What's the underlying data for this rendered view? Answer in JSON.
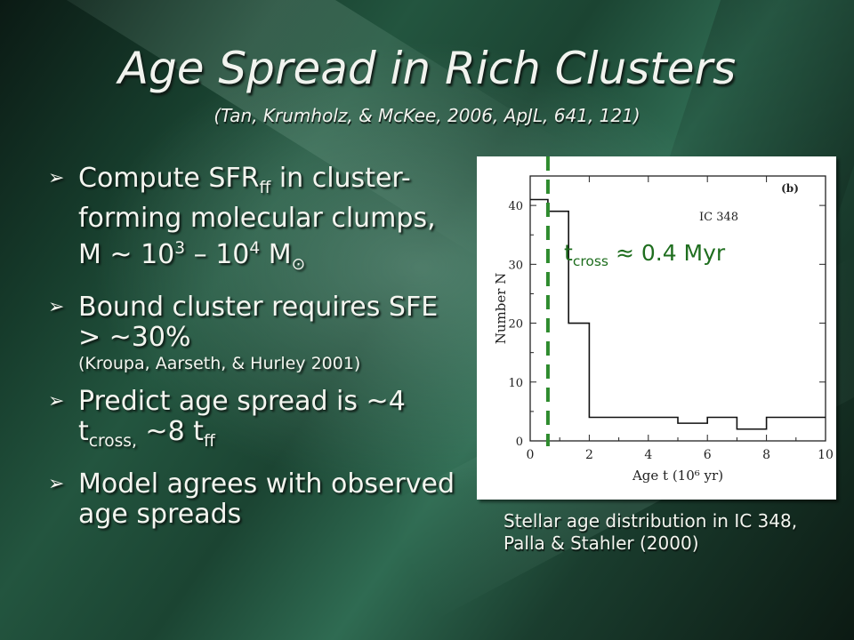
{
  "slide": {
    "title": "Age Spread in Rich Clusters",
    "subtitle": "(Tan, Krumholz, & McKee, 2006, ApJL, 641, 121)",
    "arrow_icon": "arrow-bullet-icon",
    "bullets": [
      {
        "parts": [
          "Compute SFR",
          "ff",
          " in cluster-forming molecular clumps, M ~ 10",
          "3",
          " – 10",
          "4",
          " M",
          "⊙"
        ]
      },
      {
        "main": "Bound cluster requires SFE > ~30%",
        "note": "(Kroupa, Aarseth, & Hurley 2001)"
      },
      {
        "parts": [
          "Predict age spread is ~4 t",
          "cross,",
          " ~8 t",
          "ff"
        ]
      },
      {
        "main": "Model agrees with observed age spreads"
      }
    ],
    "caption": "Stellar age distribution in IC 348, Palla & Stahler (2000)",
    "annotation": {
      "t": "t",
      "sub": "cross",
      "rest": " ≈ 0.4 Myr"
    }
  },
  "chart_data": {
    "type": "line",
    "step": true,
    "panel_label": "(b)",
    "object_label": "IC 348",
    "xlabel": "Age t (10⁶ yr)",
    "ylabel": "Number N",
    "xlim": [
      0,
      10
    ],
    "ylim": [
      0,
      45
    ],
    "x_ticks": [
      "0",
      "2",
      "4",
      "6",
      "8",
      "10"
    ],
    "y_ticks": [
      "0",
      "10",
      "20",
      "30",
      "40"
    ],
    "steps": [
      [
        0.0,
        41
      ],
      [
        0.6,
        41
      ],
      [
        0.6,
        39
      ],
      [
        1.3,
        39
      ],
      [
        1.3,
        20
      ],
      [
        2.0,
        20
      ],
      [
        2.0,
        4
      ],
      [
        3.2,
        4
      ],
      [
        3.2,
        4
      ],
      [
        5.0,
        4
      ],
      [
        5.0,
        3
      ],
      [
        6.0,
        3
      ],
      [
        6.0,
        4
      ],
      [
        7.0,
        4
      ],
      [
        7.0,
        2
      ],
      [
        8.0,
        2
      ],
      [
        8.0,
        4
      ],
      [
        10.0,
        4
      ]
    ],
    "marker_line_x": 0.6,
    "marker_color": "#2e8b2e"
  }
}
